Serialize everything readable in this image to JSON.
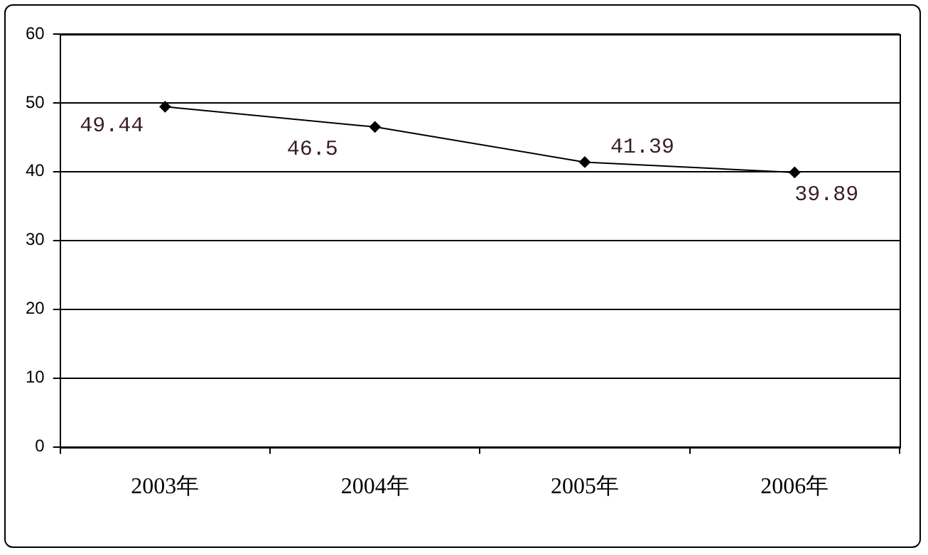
{
  "chart_data": {
    "type": "line",
    "categories": [
      "2003年",
      "2004年",
      "2005年",
      "2006年"
    ],
    "series": [
      {
        "color": "#000000",
        "values": [
          49.44,
          46.5,
          41.39,
          39.89
        ]
      }
    ],
    "ylim": [
      0,
      60
    ],
    "yticks": [
      0,
      10,
      20,
      30,
      40,
      50,
      60
    ],
    "grid": "y",
    "legend": false,
    "marker": "diamond",
    "line_style": "solid",
    "data_labels": true
  }
}
